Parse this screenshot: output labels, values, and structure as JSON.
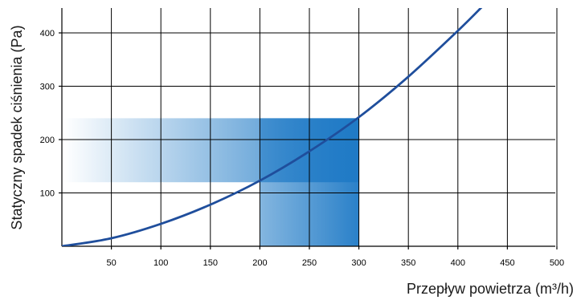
{
  "chart_data": {
    "type": "line",
    "xlabel": "Przepływ powietrza (m³/h)",
    "ylabel": "Statyczny spadek ciśnienia (Pa)",
    "xlim": [
      0,
      500
    ],
    "ylim": [
      0,
      450
    ],
    "x_ticks": [
      50,
      100,
      150,
      200,
      250,
      300,
      350,
      400,
      450,
      500
    ],
    "y_ticks": [
      100,
      200,
      300,
      400
    ],
    "grid": true,
    "series": [
      {
        "color": "#1f4e9c",
        "x": [
          0,
          50,
          100,
          150,
          200,
          250,
          300,
          350,
          400,
          425
        ],
        "y": [
          0,
          15,
          42,
          78,
          123,
          178,
          242,
          318,
          404,
          450
        ]
      }
    ],
    "shaded_regions": [
      {
        "orientation": "horizontal",
        "x": [
          0,
          300
        ],
        "y": [
          120,
          240
        ],
        "color": "#1f7ac6"
      },
      {
        "orientation": "vertical",
        "x": [
          200,
          300
        ],
        "y": [
          0,
          240
        ],
        "color": "#1f7ac6"
      }
    ]
  }
}
